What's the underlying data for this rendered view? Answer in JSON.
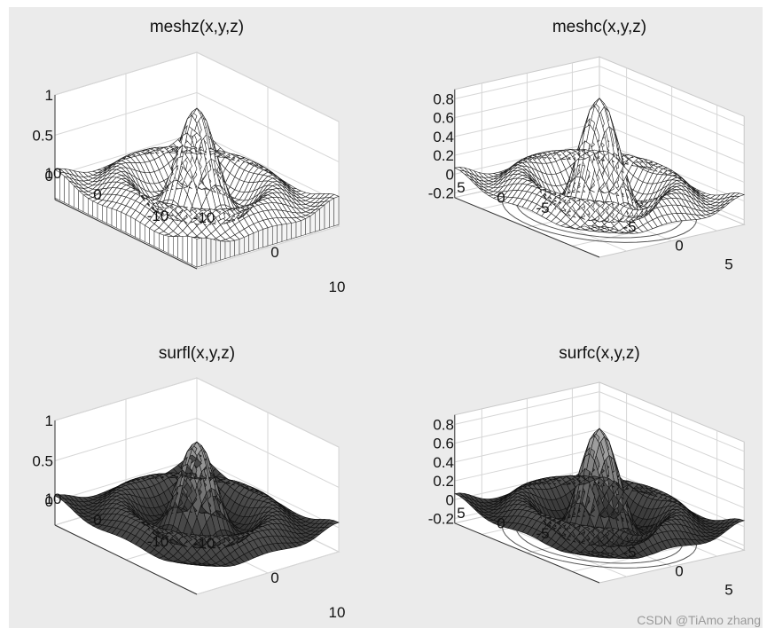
{
  "figure": {
    "watermark": "CSDN @TiAmo zhang"
  },
  "chart_data": [
    {
      "type": "surface",
      "function": "sin(r)/r over a square grid",
      "title": "meshz(x,y,z)",
      "style": "meshz",
      "x": {
        "range": [
          -10,
          10
        ],
        "ticks": [
          -10,
          0,
          10
        ]
      },
      "y": {
        "range": [
          -10,
          10
        ],
        "ticks": [
          -10,
          0,
          10
        ]
      },
      "z": {
        "range": [
          -0.3,
          1
        ],
        "ticks": [
          0,
          0.5,
          1
        ]
      },
      "z_tick_labels": [
        "0",
        "0.5",
        "1"
      ],
      "x_tick_labels": [
        "-10",
        "0",
        "10"
      ],
      "y_tick_labels": [
        "10",
        "0",
        "-10"
      ],
      "peak": 1,
      "curtain": true,
      "contour": false
    },
    {
      "type": "surface",
      "function": "sin(r)/r over a square grid",
      "title": "meshc(x,y,z)",
      "style": "meshc",
      "x": {
        "range": [
          -8,
          8
        ],
        "ticks": [
          -5,
          0,
          5
        ]
      },
      "y": {
        "range": [
          -8,
          8
        ],
        "ticks": [
          -5,
          0,
          5
        ]
      },
      "z": {
        "range": [
          -0.25,
          0.9
        ],
        "ticks": [
          -0.2,
          0,
          0.2,
          0.4,
          0.6,
          0.8
        ]
      },
      "z_tick_labels": [
        "-0.2",
        "0",
        "0.2",
        "0.4",
        "0.6",
        "0.8"
      ],
      "x_tick_labels": [
        "-5",
        "0",
        "5"
      ],
      "y_tick_labels": [
        "5",
        "0",
        "-5"
      ],
      "peak": 0.95,
      "curtain": false,
      "contour": true
    },
    {
      "type": "surface",
      "function": "sin(r)/r over a square grid",
      "title": "surfl(x,y,z)",
      "style": "surfl",
      "x": {
        "range": [
          -10,
          10
        ],
        "ticks": [
          -10,
          0,
          10
        ]
      },
      "y": {
        "range": [
          -10,
          10
        ],
        "ticks": [
          -10,
          0,
          10
        ]
      },
      "z": {
        "range": [
          -0.3,
          1
        ],
        "ticks": [
          0,
          0.5,
          1
        ]
      },
      "z_tick_labels": [
        "0",
        "0.5",
        "1"
      ],
      "x_tick_labels": [
        "-10",
        "0",
        "10"
      ],
      "y_tick_labels": [
        "10",
        "0",
        "-10"
      ],
      "peak": 0.9,
      "curtain": false,
      "contour": false
    },
    {
      "type": "surface",
      "function": "sin(r)/r over a square grid",
      "title": "surfc(x,y,z)",
      "style": "surfc",
      "x": {
        "range": [
          -8,
          8
        ],
        "ticks": [
          -5,
          0,
          5
        ]
      },
      "y": {
        "range": [
          -8,
          8
        ],
        "ticks": [
          -5,
          0,
          5
        ]
      },
      "z": {
        "range": [
          -0.25,
          0.9
        ],
        "ticks": [
          -0.2,
          0,
          0.2,
          0.4,
          0.6,
          0.8
        ]
      },
      "z_tick_labels": [
        "-0.2",
        "0",
        "0.2",
        "0.4",
        "0.6",
        "0.8"
      ],
      "x_tick_labels": [
        "-5",
        "0",
        "5"
      ],
      "y_tick_labels": [
        "5",
        "0",
        "-5"
      ],
      "peak": 0.9,
      "curtain": false,
      "contour": true
    }
  ]
}
